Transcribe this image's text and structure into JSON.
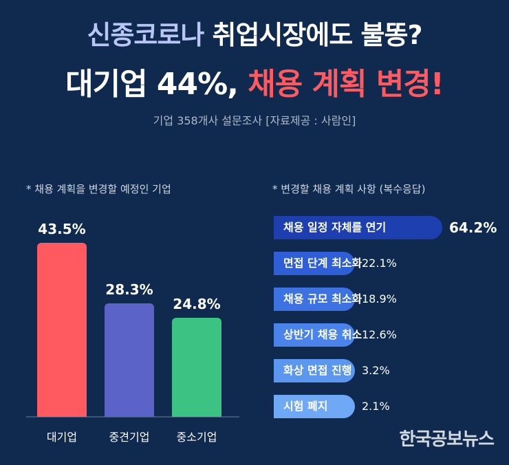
{
  "header": {
    "line1_blue": "신종코로나",
    "line1_white": "취업시장에도 불똥?",
    "line2_white": "대기업 44%,",
    "line2_red": "채용 계획 변경!",
    "subtitle": "기업 358개사 설문조사 [자료제공 : 사람인]"
  },
  "watermark": "한국공보뉴스",
  "colors": {
    "background": "#0f2a4e",
    "large": "#ff5a5f",
    "medium": "#5b63c8",
    "small": "#3cc283",
    "hbar": [
      "#1e3fb0",
      "#2f5fd6",
      "#3d72e3",
      "#4a84ea",
      "#5b96ef",
      "#6fa8f5"
    ]
  },
  "chart_data": [
    {
      "type": "bar",
      "title": "* 채용 계획을 변경할 예정인 기업",
      "categories": [
        "대기업",
        "중견기업",
        "중소기업"
      ],
      "values": [
        43.5,
        28.3,
        24.8
      ],
      "value_labels": [
        "43.5%",
        "28.3%",
        "24.8%"
      ],
      "ylim": [
        0,
        45
      ]
    },
    {
      "type": "bar",
      "orientation": "horizontal",
      "title": "* 변경할 채용 계획 사항 (복수응답)",
      "categories": [
        "채용 일정 자체를 연기",
        "면접 단계 최소화",
        "채용 규모 최소화",
        "상반기 채용 취소",
        "화상 면접 진행",
        "시험 폐지"
      ],
      "values": [
        64.2,
        22.1,
        18.9,
        12.6,
        3.2,
        2.1
      ],
      "value_labels": [
        "64.2%",
        "22.1%",
        "18.9%",
        "12.6%",
        "3.2%",
        "2.1%"
      ]
    }
  ]
}
